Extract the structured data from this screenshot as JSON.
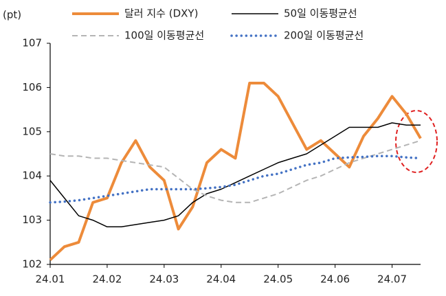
{
  "chart_data": {
    "type": "line",
    "y_label": "(pt)",
    "categories": [
      "24.01",
      null,
      null,
      null,
      "24.02",
      null,
      null,
      null,
      "24.03",
      null,
      null,
      null,
      "24.04",
      null,
      null,
      null,
      "24.05",
      null,
      null,
      null,
      "24.06",
      null,
      null,
      null,
      "24.07",
      null,
      null
    ],
    "series": [
      {
        "name": "달러 지수 (DXY)",
        "color": "#ed8b3a",
        "style": "solid",
        "width": 4,
        "values": [
          102.1,
          102.4,
          102.5,
          103.4,
          103.5,
          104.3,
          104.8,
          104.2,
          103.9,
          102.8,
          103.3,
          104.3,
          104.6,
          104.4,
          106.1,
          106.1,
          105.8,
          105.2,
          104.6,
          104.8,
          104.5,
          104.2,
          104.9,
          105.3,
          105.8,
          105.4,
          104.85
        ]
      },
      {
        "name": "50일 이동평균선",
        "color": "#000000",
        "style": "solid",
        "width": 1.5,
        "values": [
          103.9,
          103.5,
          103.1,
          103.0,
          102.85,
          102.85,
          102.9,
          102.95,
          103.0,
          103.1,
          103.4,
          103.6,
          103.7,
          103.85,
          104.0,
          104.15,
          104.3,
          104.4,
          104.5,
          104.7,
          104.9,
          105.1,
          105.1,
          105.1,
          105.2,
          105.15,
          105.15
        ]
      },
      {
        "name": "100일 이동평균선",
        "color": "#b4b4b4",
        "style": "dashed",
        "width": 2,
        "values": [
          104.5,
          104.45,
          104.45,
          104.4,
          104.4,
          104.35,
          104.3,
          104.25,
          104.2,
          103.95,
          103.7,
          103.55,
          103.45,
          103.4,
          103.4,
          103.5,
          103.6,
          103.75,
          103.9,
          104.0,
          104.15,
          104.3,
          104.4,
          104.5,
          104.6,
          104.7,
          104.8
        ]
      },
      {
        "name": "200일 이동평균선",
        "color": "#4472c4",
        "style": "dotted",
        "width": 3.5,
        "values": [
          103.4,
          103.42,
          103.45,
          103.5,
          103.55,
          103.6,
          103.65,
          103.7,
          103.7,
          103.7,
          103.7,
          103.72,
          103.75,
          103.8,
          103.9,
          104.0,
          104.05,
          104.15,
          104.25,
          104.3,
          104.4,
          104.42,
          104.43,
          104.45,
          104.45,
          104.42,
          104.4
        ]
      }
    ],
    "ylim": [
      102,
      107
    ],
    "yticks": [
      102,
      103,
      104,
      105,
      106,
      107
    ],
    "grid": false
  }
}
